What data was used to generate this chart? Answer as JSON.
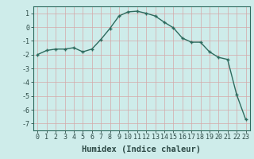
{
  "x": [
    0,
    1,
    2,
    3,
    4,
    5,
    6,
    7,
    8,
    9,
    10,
    11,
    12,
    13,
    14,
    15,
    16,
    17,
    18,
    19,
    20,
    21,
    22,
    23
  ],
  "y": [
    -2.0,
    -1.7,
    -1.6,
    -1.6,
    -1.5,
    -1.8,
    -1.6,
    -0.9,
    -0.1,
    0.8,
    1.1,
    1.15,
    1.0,
    0.8,
    0.35,
    -0.05,
    -0.8,
    -1.1,
    -1.1,
    -1.8,
    -2.2,
    -2.35,
    -4.9,
    -6.7
  ],
  "line_color": "#2d6b5e",
  "marker": "+",
  "marker_size": 3.5,
  "linewidth": 1.0,
  "bg_color": "#ceecea",
  "grid_color": "#b0d8d4",
  "xlabel": "Humidex (Indice chaleur)",
  "xlabel_fontsize": 7.5,
  "tick_fontsize": 6.0,
  "xlim": [
    -0.5,
    23.5
  ],
  "ylim": [
    -7.5,
    1.5
  ],
  "yticks": [
    1,
    0,
    -1,
    -2,
    -3,
    -4,
    -5,
    -6,
    -7
  ],
  "xticks": [
    0,
    1,
    2,
    3,
    4,
    5,
    6,
    7,
    8,
    9,
    10,
    11,
    12,
    13,
    14,
    15,
    16,
    17,
    18,
    19,
    20,
    21,
    22,
    23
  ]
}
